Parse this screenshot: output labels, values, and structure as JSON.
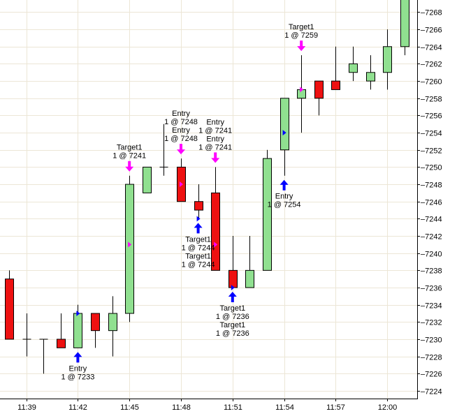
{
  "chart_data": {
    "type": "candlestick",
    "y_axis_position": "right",
    "ylim": [
      7223,
      7271
    ],
    "y_ticks": [
      7224,
      7226,
      7228,
      7230,
      7232,
      7234,
      7236,
      7238,
      7240,
      7242,
      7244,
      7246,
      7248,
      7250,
      7252,
      7254,
      7256,
      7258,
      7260,
      7262,
      7264,
      7266,
      7268
    ],
    "x_ticks": [
      {
        "bar": 1,
        "label": "11:39"
      },
      {
        "bar": 4,
        "label": "11:42"
      },
      {
        "bar": 7,
        "label": "11:45"
      },
      {
        "bar": 10,
        "label": "11:48"
      },
      {
        "bar": 13,
        "label": "11:51"
      },
      {
        "bar": 16,
        "label": "11:54"
      },
      {
        "bar": 19,
        "label": "11:57"
      },
      {
        "bar": 22,
        "label": "12:00"
      }
    ],
    "grid": true,
    "colors": {
      "up": "#90e090",
      "down": "#ee1111",
      "grid": "#ece6d6",
      "entry_arrow": "#0000ff",
      "target_arrow": "#ff00ff"
    },
    "candles": [
      {
        "open": 7237,
        "high": 7238,
        "low": 7230,
        "close": 7230
      },
      {
        "open": 7230,
        "high": 7233,
        "low": 7228,
        "close": 7230
      },
      {
        "open": 7230,
        "high": 7230,
        "low": 7226,
        "close": 7230
      },
      {
        "open": 7230,
        "high": 7233,
        "low": 7229,
        "close": 7229
      },
      {
        "open": 7229,
        "high": 7234,
        "low": 7229,
        "close": 7233
      },
      {
        "open": 7233,
        "high": 7233,
        "low": 7229,
        "close": 7231
      },
      {
        "open": 7231,
        "high": 7235,
        "low": 7228,
        "close": 7233
      },
      {
        "open": 7233,
        "high": 7249,
        "low": 7232,
        "close": 7248
      },
      {
        "open": 7247,
        "high": 7250,
        "low": 7247,
        "close": 7250
      },
      {
        "open": 7250,
        "high": 7255,
        "low": 7249,
        "close": 7250
      },
      {
        "open": 7250,
        "high": 7251,
        "low": 7246,
        "close": 7246
      },
      {
        "open": 7246,
        "high": 7248,
        "low": 7244,
        "close": 7245
      },
      {
        "open": 7247,
        "high": 7250,
        "low": 7238,
        "close": 7238
      },
      {
        "open": 7238,
        "high": 7242,
        "low": 7236,
        "close": 7236
      },
      {
        "open": 7236,
        "high": 7242,
        "low": 7236,
        "close": 7238
      },
      {
        "open": 7238,
        "high": 7252,
        "low": 7238,
        "close": 7251
      },
      {
        "open": 7252,
        "high": 7258,
        "low": 7249,
        "close": 7258
      },
      {
        "open": 7258,
        "high": 7263,
        "low": 7254,
        "close": 7259
      },
      {
        "open": 7260,
        "high": 7260,
        "low": 7256,
        "close": 7258
      },
      {
        "open": 7260,
        "high": 7264,
        "low": 7259,
        "close": 7259
      },
      {
        "open": 7261,
        "high": 7264,
        "low": 7260,
        "close": 7262
      },
      {
        "open": 7260,
        "high": 7263,
        "low": 7259,
        "close": 7261
      },
      {
        "open": 7261,
        "high": 7266,
        "low": 7259,
        "close": 7264
      },
      {
        "open": 7264,
        "high": 7271,
        "low": 7263,
        "close": 7271
      }
    ],
    "trade_markers": [
      {
        "bar": 4,
        "kind": "entry",
        "price": 7233,
        "side": "right"
      },
      {
        "bar": 7,
        "kind": "target",
        "price": 7241,
        "side": "right"
      },
      {
        "bar": 10,
        "kind": "target",
        "price": 7248,
        "side": "right"
      },
      {
        "bar": 11,
        "kind": "entry",
        "price": 7244,
        "side": "right"
      },
      {
        "bar": 12,
        "kind": "target",
        "price": 7241,
        "side": "right"
      },
      {
        "bar": 13,
        "kind": "entry",
        "price": 7236,
        "side": "right"
      },
      {
        "bar": 16,
        "kind": "entry",
        "price": 7254,
        "side": "right"
      },
      {
        "bar": 17,
        "kind": "target",
        "price": 7259,
        "side": "right"
      }
    ],
    "signals": [
      {
        "bar": 4,
        "kind": "entry",
        "position": "below",
        "price": 7229,
        "lines": [
          "Entry",
          "1 @ 7233"
        ]
      },
      {
        "bar": 7,
        "kind": "target",
        "position": "above",
        "price": 7249,
        "lines": [
          "Target1",
          "1 @ 7241"
        ]
      },
      {
        "bar": 10,
        "kind": "target",
        "position": "above",
        "price": 7251,
        "lines": [
          "Entry",
          "1 @ 7248",
          "Entry",
          "1 @ 7248"
        ]
      },
      {
        "bar": 11,
        "kind": "entry",
        "position": "below",
        "price": 7244,
        "lines": [
          "Target1",
          "1 @ 7244",
          "Target1",
          "1 @ 7244"
        ]
      },
      {
        "bar": 12,
        "kind": "target",
        "position": "above",
        "price": 7250,
        "lines": [
          "Entry",
          "1 @ 7241",
          "Entry",
          "1 @ 7241"
        ]
      },
      {
        "bar": 13,
        "kind": "entry",
        "position": "below",
        "price": 7236,
        "lines": [
          "Target1",
          "1 @ 7236",
          "Target1",
          "1 @ 7236"
        ]
      },
      {
        "bar": 16,
        "kind": "entry",
        "position": "below",
        "price": 7249,
        "lines": [
          "Entry",
          "1 @ 7254"
        ]
      },
      {
        "bar": 17,
        "kind": "target",
        "position": "above",
        "price": 7263,
        "lines": [
          "Target1",
          "1 @ 7259"
        ]
      }
    ]
  }
}
